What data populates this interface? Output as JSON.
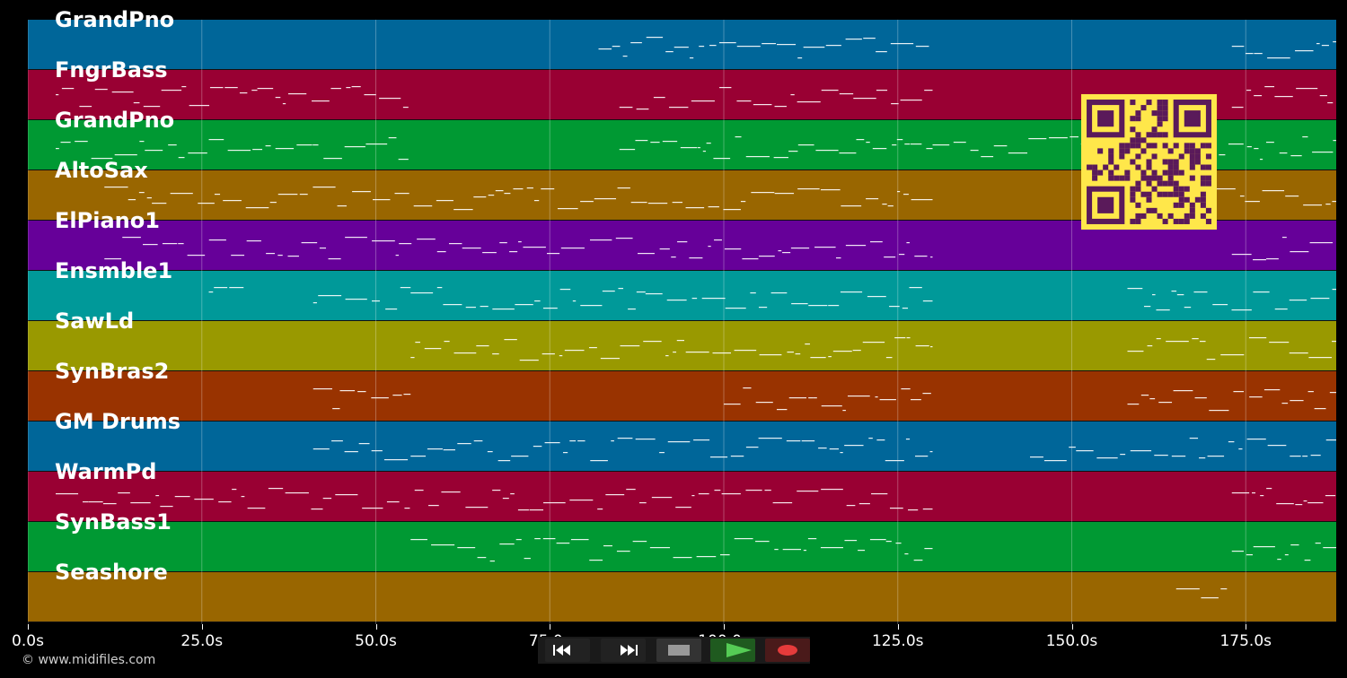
{
  "tracks": [
    {
      "name": "GrandPno",
      "color": "#006699"
    },
    {
      "name": "FngrBass",
      "color": "#990033"
    },
    {
      "name": "GrandPno",
      "color": "#009933"
    },
    {
      "name": "AltoSax",
      "color": "#996600"
    },
    {
      "name": "ElPiano1",
      "color": "#660099"
    },
    {
      "name": "Ensmble1",
      "color": "#009999"
    },
    {
      "name": "SawLd",
      "color": "#999900"
    },
    {
      "name": "SynBras2",
      "color": "#993300"
    },
    {
      "name": "GM Drums",
      "color": "#006699"
    },
    {
      "name": "WarmPd",
      "color": "#990033"
    },
    {
      "name": "SynBass1",
      "color": "#009933"
    },
    {
      "name": "Seashore",
      "color": "#996600"
    }
  ],
  "timeline": {
    "duration_s": 188,
    "ticks": [
      "0.0s",
      "25.0s",
      "50.0s",
      "75.0s",
      "100.0s",
      "125.0s",
      "150.0s",
      "175.0s"
    ],
    "tick_values": [
      0,
      25,
      50,
      75,
      100,
      125,
      150,
      175
    ]
  },
  "footer": {
    "copyright": "© www.midifiles.com"
  },
  "transport": {
    "rewind": "rewind-icon",
    "fast_forward": "fast-forward-icon",
    "stop": "stop-icon",
    "play": "play-icon",
    "record": "record-icon"
  },
  "colors": {
    "background": "#000000",
    "qr_fg": "#5a1a5a",
    "qr_bg": "#ffe74a",
    "note": "#ffffff"
  }
}
